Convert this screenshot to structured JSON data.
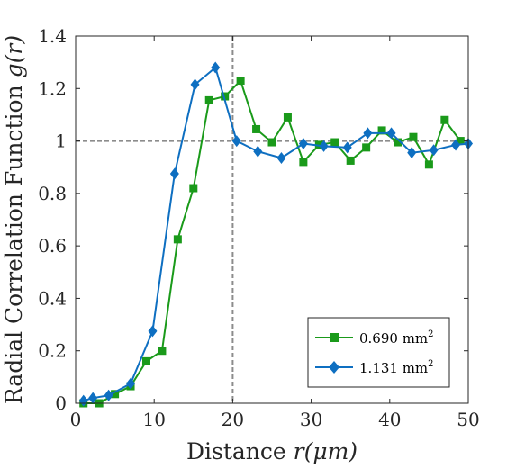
{
  "chart_data": {
    "type": "line",
    "title": "",
    "xlabel_text": "Distance ",
    "xlabel_var": "r(μm)",
    "ylabel_text": "Radial Correlation Function ",
    "ylabel_var": "g(r)",
    "xlim": [
      0,
      50
    ],
    "ylim": [
      0,
      1.4
    ],
    "xticks": [
      0,
      10,
      20,
      30,
      40,
      50
    ],
    "xtick_labels": [
      "0",
      "10",
      "20",
      "30",
      "40",
      "50"
    ],
    "yticks": [
      0,
      0.2,
      0.4,
      0.6,
      0.8,
      1.0,
      1.2,
      1.4
    ],
    "ytick_labels": [
      "0",
      "0.2",
      "0.4",
      "0.6",
      "0.8",
      "1",
      "1.2",
      "1.4"
    ],
    "grid": false,
    "legend_position": "bottom-right",
    "reference_lines": {
      "x": 20,
      "y": 1.0,
      "color": "#8c8c8c"
    },
    "series": [
      {
        "name": "0.690 mm",
        "name_sup": "2",
        "color": "#1a9a1a",
        "marker": "square",
        "x": [
          1.0,
          3.0,
          5.0,
          7.0,
          9.0,
          11.0,
          13.0,
          15.0,
          17.0,
          19.0,
          21.0,
          23.0,
          25.0,
          27.0,
          29.0,
          31.0,
          33.0,
          35.0,
          37.0,
          39.0,
          41.0,
          43.0,
          45.0,
          47.0,
          49.0
        ],
        "values": [
          0.0,
          0.0,
          0.035,
          0.065,
          0.16,
          0.2,
          0.625,
          0.82,
          1.155,
          1.17,
          1.23,
          1.045,
          0.995,
          1.09,
          0.92,
          0.985,
          0.995,
          0.925,
          0.975,
          1.04,
          0.995,
          1.015,
          0.91,
          1.08,
          1.0
        ]
      },
      {
        "name": "1.131 mm",
        "name_sup": "2",
        "color": "#0e6fc1",
        "marker": "diamond",
        "x": [
          1.0,
          2.2,
          4.2,
          7.0,
          9.8,
          12.6,
          15.2,
          17.8,
          20.5,
          23.2,
          26.2,
          29.0,
          31.6,
          34.6,
          37.2,
          40.2,
          42.8,
          45.6,
          48.4,
          50.0
        ],
        "values": [
          0.01,
          0.02,
          0.03,
          0.075,
          0.275,
          0.875,
          1.215,
          1.28,
          1.0,
          0.96,
          0.935,
          0.99,
          0.98,
          0.975,
          1.03,
          1.03,
          0.955,
          0.965,
          0.985,
          0.99
        ]
      }
    ]
  }
}
